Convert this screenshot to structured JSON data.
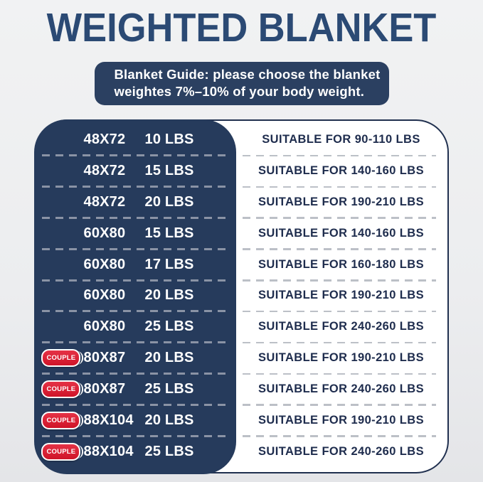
{
  "page": {
    "title": "WEIGHTED BLANKET"
  },
  "banner": {
    "line1": "Blanket Guide: please choose the blanket",
    "line2": "weightes 7%–10% of your body weight."
  },
  "table": {
    "rows": [
      {
        "badge": "",
        "size": "48X72",
        "weight": "10 LBS",
        "suitable": "SUITABLE FOR 90-110 LBS"
      },
      {
        "badge": "",
        "size": "48X72",
        "weight": "15 LBS",
        "suitable": "SUITABLE FOR 140-160 LBS"
      },
      {
        "badge": "",
        "size": "48X72",
        "weight": "20 LBS",
        "suitable": "SUITABLE FOR 190-210 LBS"
      },
      {
        "badge": "",
        "size": "60X80",
        "weight": "15 LBS",
        "suitable": "SUITABLE FOR 140-160 LBS"
      },
      {
        "badge": "",
        "size": "60X80",
        "weight": "17 LBS",
        "suitable": "SUITABLE FOR 160-180 LBS"
      },
      {
        "badge": "",
        "size": "60X80",
        "weight": "20 LBS",
        "suitable": "SUITABLE FOR 190-210 LBS"
      },
      {
        "badge": "",
        "size": "60X80",
        "weight": "25 LBS",
        "suitable": "SUITABLE FOR 240-260 LBS"
      },
      {
        "badge": "COUPLE",
        "size": "80X87",
        "weight": "20 LBS",
        "suitable": "SUITABLE FOR 190-210 LBS"
      },
      {
        "badge": "COUPLE",
        "size": "80X87",
        "weight": "25 LBS",
        "suitable": "SUITABLE FOR 240-260 LBS"
      },
      {
        "badge": "COUPLE",
        "size": "88X104",
        "weight": "20 LBS",
        "suitable": "SUITABLE FOR 190-210 LBS"
      },
      {
        "badge": "COUPLE",
        "size": "88X104",
        "weight": "25 LBS",
        "suitable": "SUITABLE FOR 240-260 LBS"
      }
    ]
  },
  "colors": {
    "navy_panel": "#263b5c",
    "navy_banner": "#2b4061",
    "navy_title": "#2b4a74",
    "card_border": "#20304f",
    "suitable_text": "#1e2c4d",
    "badge_red": "#d81f30",
    "dash_on_navy": "#8a93a5",
    "dash_on_white": "#bcc0c7",
    "background": "#edeef0"
  }
}
